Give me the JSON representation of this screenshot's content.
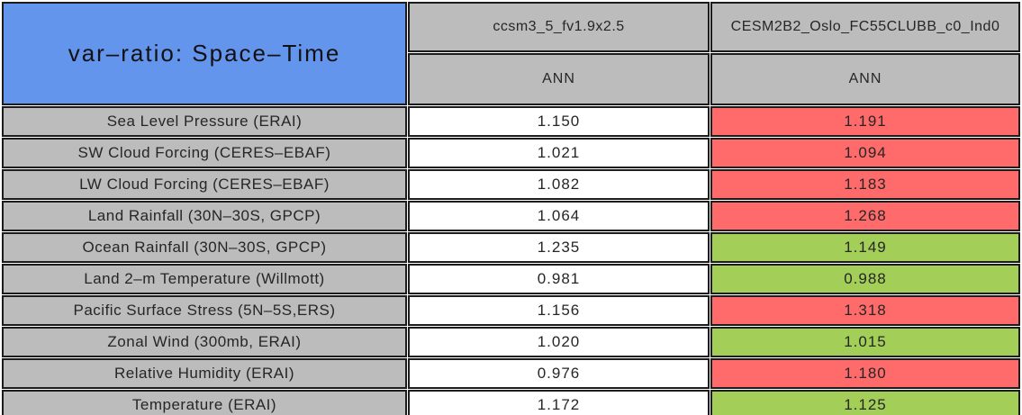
{
  "colors": {
    "title_blue": "#6495ED",
    "header_gray": "#BCBCBC",
    "value_white": "#FFFFFF",
    "worse_red": "#FF6B6B",
    "better_green": "#A3CE58",
    "border_black": "#1C1C1C"
  },
  "table": {
    "title": "var–ratio: Space–Time",
    "headers": [
      {
        "model": "ccsm3_5_fv1.9x2.5",
        "season": "ANN"
      },
      {
        "model": "CESM2B2_Oslo_FC55CLUBB_c0_Ind0",
        "season": "ANN"
      }
    ],
    "rows": [
      {
        "label": "Sea Level Pressure (ERAI)",
        "v1": "1.150",
        "v2": "1.191",
        "v2_color": "red"
      },
      {
        "label": "SW Cloud Forcing (CERES–EBAF)",
        "v1": "1.021",
        "v2": "1.094",
        "v2_color": "red"
      },
      {
        "label": "LW Cloud Forcing (CERES–EBAF)",
        "v1": "1.082",
        "v2": "1.183",
        "v2_color": "red"
      },
      {
        "label": "Land Rainfall (30N–30S, GPCP)",
        "v1": "1.064",
        "v2": "1.268",
        "v2_color": "red"
      },
      {
        "label": "Ocean Rainfall (30N–30S, GPCP)",
        "v1": "1.235",
        "v2": "1.149",
        "v2_color": "green"
      },
      {
        "label": "Land 2–m Temperature (Willmott)",
        "v1": "0.981",
        "v2": "0.988",
        "v2_color": "green"
      },
      {
        "label": "Pacific Surface Stress (5N–5S,ERS)",
        "v1": "1.156",
        "v2": "1.318",
        "v2_color": "red"
      },
      {
        "label": "Zonal Wind (300mb, ERAI)",
        "v1": "1.020",
        "v2": "1.015",
        "v2_color": "green"
      },
      {
        "label": "Relative Humidity (ERAI)",
        "v1": "0.976",
        "v2": "1.180",
        "v2_color": "red"
      },
      {
        "label": "Temperature (ERAI)",
        "v1": "1.172",
        "v2": "1.125",
        "v2_color": "green"
      }
    ]
  },
  "chart_data": {
    "type": "table",
    "title": "var-ratio: Space-Time",
    "column_groups": [
      {
        "model": "ccsm3_5_fv1.9x2.5",
        "subcolumns": [
          "ANN"
        ]
      },
      {
        "model": "CESM2B2_Oslo_FC55CLUBB_c0_Ind0",
        "subcolumns": [
          "ANN"
        ]
      }
    ],
    "rows": [
      {
        "label": "Sea Level Pressure (ERAI)",
        "values": [
          1.15,
          1.191
        ],
        "cell_colors": [
          "white",
          "red"
        ]
      },
      {
        "label": "SW Cloud Forcing (CERES-EBAF)",
        "values": [
          1.021,
          1.094
        ],
        "cell_colors": [
          "white",
          "red"
        ]
      },
      {
        "label": "LW Cloud Forcing (CERES-EBAF)",
        "values": [
          1.082,
          1.183
        ],
        "cell_colors": [
          "white",
          "red"
        ]
      },
      {
        "label": "Land Rainfall (30N-30S, GPCP)",
        "values": [
          1.064,
          1.268
        ],
        "cell_colors": [
          "white",
          "red"
        ]
      },
      {
        "label": "Ocean Rainfall (30N-30S, GPCP)",
        "values": [
          1.235,
          1.149
        ],
        "cell_colors": [
          "white",
          "green"
        ]
      },
      {
        "label": "Land 2-m Temperature (Willmott)",
        "values": [
          0.981,
          0.988
        ],
        "cell_colors": [
          "white",
          "green"
        ]
      },
      {
        "label": "Pacific Surface Stress (5N-5S,ERS)",
        "values": [
          1.156,
          1.318
        ],
        "cell_colors": [
          "white",
          "red"
        ]
      },
      {
        "label": "Zonal Wind (300mb, ERAI)",
        "values": [
          1.02,
          1.015
        ],
        "cell_colors": [
          "white",
          "green"
        ]
      },
      {
        "label": "Relative Humidity (ERAI)",
        "values": [
          0.976,
          1.18
        ],
        "cell_colors": [
          "white",
          "red"
        ]
      },
      {
        "label": "Temperature (ERAI)",
        "values": [
          1.172,
          1.125
        ],
        "cell_colors": [
          "white",
          "green"
        ]
      }
    ],
    "layout": {
      "header_fill": "#BCBCBC",
      "title_fill": "#6495ED",
      "red_means": "ratio worse vs control",
      "green_means": "ratio better vs control"
    }
  }
}
